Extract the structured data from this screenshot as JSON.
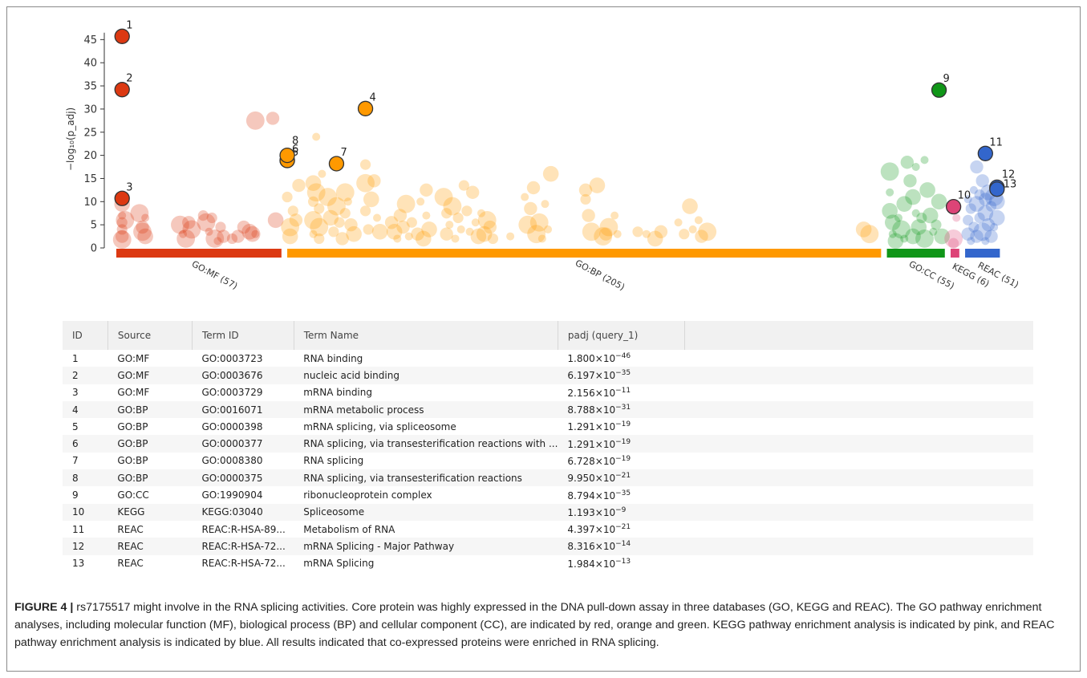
{
  "chart_data": {
    "type": "scatter",
    "ylabel": "−log₁₀(p_adj)",
    "yticks": [
      0,
      5,
      10,
      15,
      20,
      25,
      30,
      35,
      40,
      45
    ],
    "ylim": [
      0,
      47
    ],
    "sources": [
      {
        "label": "GO:MF (57)",
        "color": "#dc3912",
        "range": [
          0,
          57
        ]
      },
      {
        "label": "GO:BP (205)",
        "color": "#ff9900",
        "range": [
          59,
          264
        ]
      },
      {
        "label": "GO:CC (55)",
        "color": "#109618",
        "range": [
          266,
          286
        ]
      },
      {
        "label": "KEGG (6)",
        "color": "#dd4477",
        "range": [
          288,
          291
        ]
      },
      {
        "label": "REAC (51)",
        "color": "#3366cc",
        "range": [
          293,
          305
        ]
      }
    ],
    "highlighted": [
      {
        "id": "1",
        "source": 0,
        "x": 2,
        "y": 45.7
      },
      {
        "id": "2",
        "source": 0,
        "x": 2,
        "y": 34.2
      },
      {
        "id": "3",
        "source": 0,
        "x": 2,
        "y": 10.7
      },
      {
        "id": "4",
        "source": 1,
        "x": 86,
        "y": 30.1
      },
      {
        "id": "5",
        "source": 1,
        "x": 59,
        "y": 18.9
      },
      {
        "id": "6",
        "source": 1,
        "x": 59,
        "y": 18.9
      },
      {
        "id": "7",
        "source": 1,
        "x": 76,
        "y": 18.2
      },
      {
        "id": "8",
        "source": 1,
        "x": 59,
        "y": 20.0
      },
      {
        "id": "9",
        "source": 2,
        "x": 284,
        "y": 34.1
      },
      {
        "id": "10",
        "source": 3,
        "x": 289,
        "y": 8.9
      },
      {
        "id": "11",
        "source": 4,
        "x": 300,
        "y": 20.4
      },
      {
        "id": "12",
        "source": 4,
        "x": 304,
        "y": 13.1
      },
      {
        "id": "13",
        "source": 4,
        "x": 304,
        "y": 12.7
      }
    ],
    "background_points": [
      {
        "source": 0,
        "x": 2,
        "y": 9.5
      },
      {
        "source": 0,
        "x": 2,
        "y": 7.0
      },
      {
        "source": 0,
        "x": 2,
        "y": 5.5
      },
      {
        "source": 0,
        "x": 2,
        "y": 4.0
      },
      {
        "source": 0,
        "x": 2,
        "y": 2.5
      },
      {
        "source": 0,
        "x": 2,
        "y": 1.8
      },
      {
        "source": 0,
        "x": 3,
        "y": 6.0
      },
      {
        "source": 0,
        "x": 8,
        "y": 7.5
      },
      {
        "source": 0,
        "x": 9,
        "y": 3.5
      },
      {
        "source": 0,
        "x": 10,
        "y": 6.5
      },
      {
        "source": 0,
        "x": 10,
        "y": 2.5
      },
      {
        "source": 0,
        "x": 9,
        "y": 4.5
      },
      {
        "source": 0,
        "x": 22,
        "y": 5.0
      },
      {
        "source": 0,
        "x": 23,
        "y": 3.0
      },
      {
        "source": 0,
        "x": 24,
        "y": 2.0
      },
      {
        "source": 0,
        "x": 25,
        "y": 5.5
      },
      {
        "source": 0,
        "x": 26,
        "y": 4.0
      },
      {
        "source": 0,
        "x": 30,
        "y": 7.0
      },
      {
        "source": 0,
        "x": 31,
        "y": 5.5
      },
      {
        "source": 0,
        "x": 32,
        "y": 3.5
      },
      {
        "source": 0,
        "x": 33,
        "y": 6.5
      },
      {
        "source": 0,
        "x": 34,
        "y": 2.0
      },
      {
        "source": 0,
        "x": 35,
        "y": 1.5
      },
      {
        "source": 0,
        "x": 36,
        "y": 4.5
      },
      {
        "source": 0,
        "x": 37,
        "y": 2.5
      },
      {
        "source": 0,
        "x": 40,
        "y": 2.0
      },
      {
        "source": 0,
        "x": 42,
        "y": 2.5
      },
      {
        "source": 0,
        "x": 44,
        "y": 4.5
      },
      {
        "source": 0,
        "x": 46,
        "y": 3.5
      },
      {
        "source": 0,
        "x": 47,
        "y": 3.0
      },
      {
        "source": 0,
        "x": 48,
        "y": 3.0
      },
      {
        "source": 0,
        "x": 48,
        "y": 27.5
      },
      {
        "source": 0,
        "x": 54,
        "y": 28.0
      },
      {
        "source": 0,
        "x": 55,
        "y": 6.0
      },
      {
        "source": 1,
        "x": 59,
        "y": 11.0
      },
      {
        "source": 1,
        "x": 60,
        "y": 2.5
      },
      {
        "source": 1,
        "x": 60,
        "y": 4.5
      },
      {
        "source": 1,
        "x": 61,
        "y": 8.0
      },
      {
        "source": 1,
        "x": 62,
        "y": 6.0
      },
      {
        "source": 1,
        "x": 63,
        "y": 13.5
      },
      {
        "source": 1,
        "x": 69,
        "y": 24.0
      },
      {
        "source": 1,
        "x": 68,
        "y": 14.0
      },
      {
        "source": 1,
        "x": 68,
        "y": 10.0
      },
      {
        "source": 1,
        "x": 68,
        "y": 6.0
      },
      {
        "source": 1,
        "x": 68,
        "y": 3.0
      },
      {
        "source": 1,
        "x": 69,
        "y": 12.0
      },
      {
        "source": 1,
        "x": 70,
        "y": 8.5
      },
      {
        "source": 1,
        "x": 70,
        "y": 4.5
      },
      {
        "source": 1,
        "x": 70,
        "y": 2.0
      },
      {
        "source": 1,
        "x": 71,
        "y": 16.0
      },
      {
        "source": 1,
        "x": 73,
        "y": 11.0
      },
      {
        "source": 1,
        "x": 74,
        "y": 6.5
      },
      {
        "source": 1,
        "x": 75,
        "y": 3.5
      },
      {
        "source": 1,
        "x": 76,
        "y": 9.0
      },
      {
        "source": 1,
        "x": 77,
        "y": 5.5
      },
      {
        "source": 1,
        "x": 78,
        "y": 2.0
      },
      {
        "source": 1,
        "x": 79,
        "y": 12.0
      },
      {
        "source": 1,
        "x": 79,
        "y": 7.5
      },
      {
        "source": 1,
        "x": 80,
        "y": 10.0
      },
      {
        "source": 1,
        "x": 81,
        "y": 5.0
      },
      {
        "source": 1,
        "x": 82,
        "y": 3.0
      },
      {
        "source": 1,
        "x": 86,
        "y": 18.0
      },
      {
        "source": 1,
        "x": 86,
        "y": 14.0
      },
      {
        "source": 1,
        "x": 86,
        "y": 8.0
      },
      {
        "source": 1,
        "x": 87,
        "y": 4.0
      },
      {
        "source": 1,
        "x": 88,
        "y": 10.5
      },
      {
        "source": 1,
        "x": 89,
        "y": 14.5
      },
      {
        "source": 1,
        "x": 90,
        "y": 6.5
      },
      {
        "source": 1,
        "x": 91,
        "y": 3.5
      },
      {
        "source": 1,
        "x": 95,
        "y": 5.5
      },
      {
        "source": 1,
        "x": 96,
        "y": 3.5
      },
      {
        "source": 1,
        "x": 97,
        "y": 2.0
      },
      {
        "source": 1,
        "x": 98,
        "y": 7.0
      },
      {
        "source": 1,
        "x": 99,
        "y": 4.5
      },
      {
        "source": 1,
        "x": 100,
        "y": 9.5
      },
      {
        "source": 1,
        "x": 101,
        "y": 2.5
      },
      {
        "source": 1,
        "x": 102,
        "y": 5.5
      },
      {
        "source": 1,
        "x": 104,
        "y": 3.0
      },
      {
        "source": 1,
        "x": 105,
        "y": 10.0
      },
      {
        "source": 1,
        "x": 106,
        "y": 2.0
      },
      {
        "source": 1,
        "x": 107,
        "y": 12.5
      },
      {
        "source": 1,
        "x": 107,
        "y": 7.0
      },
      {
        "source": 1,
        "x": 108,
        "y": 4.0
      },
      {
        "source": 1,
        "x": 113,
        "y": 11.0
      },
      {
        "source": 1,
        "x": 114,
        "y": 7.5
      },
      {
        "source": 1,
        "x": 114,
        "y": 3.0
      },
      {
        "source": 1,
        "x": 115,
        "y": 5.0
      },
      {
        "source": 1,
        "x": 116,
        "y": 9.0
      },
      {
        "source": 1,
        "x": 117,
        "y": 2.0
      },
      {
        "source": 1,
        "x": 118,
        "y": 6.5
      },
      {
        "source": 1,
        "x": 119,
        "y": 4.0
      },
      {
        "source": 1,
        "x": 120,
        "y": 13.5
      },
      {
        "source": 1,
        "x": 121,
        "y": 8.0
      },
      {
        "source": 1,
        "x": 122,
        "y": 3.5
      },
      {
        "source": 1,
        "x": 123,
        "y": 12.0
      },
      {
        "source": 1,
        "x": 124,
        "y": 5.5
      },
      {
        "source": 1,
        "x": 125,
        "y": 2.5
      },
      {
        "source": 1,
        "x": 126,
        "y": 7.5
      },
      {
        "source": 1,
        "x": 127,
        "y": 3.0
      },
      {
        "source": 1,
        "x": 128,
        "y": 6.0
      },
      {
        "source": 1,
        "x": 129,
        "y": 4.5
      },
      {
        "source": 1,
        "x": 130,
        "y": 2.0
      },
      {
        "source": 1,
        "x": 136,
        "y": 2.5
      },
      {
        "source": 1,
        "x": 141,
        "y": 11.0
      },
      {
        "source": 1,
        "x": 142,
        "y": 5.0
      },
      {
        "source": 1,
        "x": 143,
        "y": 8.5
      },
      {
        "source": 1,
        "x": 144,
        "y": 13.0
      },
      {
        "source": 1,
        "x": 145,
        "y": 3.0
      },
      {
        "source": 1,
        "x": 146,
        "y": 5.5
      },
      {
        "source": 1,
        "x": 147,
        "y": 2.0
      },
      {
        "source": 1,
        "x": 148,
        "y": 9.5
      },
      {
        "source": 1,
        "x": 149,
        "y": 4.0
      },
      {
        "source": 1,
        "x": 150,
        "y": 16.0
      },
      {
        "source": 1,
        "x": 162,
        "y": 12.5
      },
      {
        "source": 1,
        "x": 162,
        "y": 10.5
      },
      {
        "source": 1,
        "x": 163,
        "y": 7.0
      },
      {
        "source": 1,
        "x": 164,
        "y": 3.5
      },
      {
        "source": 1,
        "x": 166,
        "y": 13.5
      },
      {
        "source": 1,
        "x": 168,
        "y": 2.5
      },
      {
        "source": 1,
        "x": 169,
        "y": 3.0
      },
      {
        "source": 1,
        "x": 170,
        "y": 4.5
      },
      {
        "source": 1,
        "x": 172,
        "y": 7.0
      },
      {
        "source": 1,
        "x": 173,
        "y": 3.0
      },
      {
        "source": 1,
        "x": 180,
        "y": 3.5
      },
      {
        "source": 1,
        "x": 183,
        "y": 3.0
      },
      {
        "source": 1,
        "x": 186,
        "y": 2.0
      },
      {
        "source": 1,
        "x": 188,
        "y": 3.5
      },
      {
        "source": 1,
        "x": 194,
        "y": 5.5
      },
      {
        "source": 1,
        "x": 196,
        "y": 3.0
      },
      {
        "source": 1,
        "x": 198,
        "y": 9.0
      },
      {
        "source": 1,
        "x": 199,
        "y": 4.0
      },
      {
        "source": 1,
        "x": 201,
        "y": 6.0
      },
      {
        "source": 1,
        "x": 202,
        "y": 2.5
      },
      {
        "source": 1,
        "x": 204,
        "y": 3.5
      },
      {
        "source": 1,
        "x": 258,
        "y": 4.0
      },
      {
        "source": 1,
        "x": 260,
        "y": 3.0
      },
      {
        "source": 2,
        "x": 267,
        "y": 16.5
      },
      {
        "source": 2,
        "x": 267,
        "y": 12.0
      },
      {
        "source": 2,
        "x": 267,
        "y": 8.0
      },
      {
        "source": 2,
        "x": 268,
        "y": 5.5
      },
      {
        "source": 2,
        "x": 268,
        "y": 3.0
      },
      {
        "source": 2,
        "x": 269,
        "y": 1.5
      },
      {
        "source": 2,
        "x": 270,
        "y": 6.5
      },
      {
        "source": 2,
        "x": 271,
        "y": 4.0
      },
      {
        "source": 2,
        "x": 272,
        "y": 9.5
      },
      {
        "source": 2,
        "x": 272,
        "y": 2.0
      },
      {
        "source": 2,
        "x": 273,
        "y": 18.5
      },
      {
        "source": 2,
        "x": 274,
        "y": 14.5
      },
      {
        "source": 2,
        "x": 275,
        "y": 11.0
      },
      {
        "source": 2,
        "x": 275,
        "y": 2.5
      },
      {
        "source": 2,
        "x": 276,
        "y": 17.5
      },
      {
        "source": 2,
        "x": 276,
        "y": 7.5
      },
      {
        "source": 2,
        "x": 277,
        "y": 4.5
      },
      {
        "source": 2,
        "x": 278,
        "y": 6.5
      },
      {
        "source": 2,
        "x": 279,
        "y": 19.0
      },
      {
        "source": 2,
        "x": 279,
        "y": 2.0
      },
      {
        "source": 2,
        "x": 280,
        "y": 12.5
      },
      {
        "source": 2,
        "x": 281,
        "y": 7.0
      },
      {
        "source": 2,
        "x": 282,
        "y": 3.5
      },
      {
        "source": 2,
        "x": 283,
        "y": 5.0
      },
      {
        "source": 2,
        "x": 284,
        "y": 10.0
      },
      {
        "source": 2,
        "x": 285,
        "y": 2.5
      },
      {
        "source": 3,
        "x": 290,
        "y": 6.5
      },
      {
        "source": 3,
        "x": 289,
        "y": 2.0
      },
      {
        "source": 3,
        "x": 289,
        "y": 1.0
      },
      {
        "source": 4,
        "x": 294,
        "y": 10.5
      },
      {
        "source": 4,
        "x": 294,
        "y": 6.0
      },
      {
        "source": 4,
        "x": 294,
        "y": 3.0
      },
      {
        "source": 4,
        "x": 295,
        "y": 8.5
      },
      {
        "source": 4,
        "x": 295,
        "y": 1.5
      },
      {
        "source": 4,
        "x": 296,
        "y": 12.5
      },
      {
        "source": 4,
        "x": 296,
        "y": 4.5
      },
      {
        "source": 4,
        "x": 297,
        "y": 17.5
      },
      {
        "source": 4,
        "x": 297,
        "y": 9.5
      },
      {
        "source": 4,
        "x": 297,
        "y": 2.5
      },
      {
        "source": 4,
        "x": 298,
        "y": 11.5
      },
      {
        "source": 4,
        "x": 298,
        "y": 6.5
      },
      {
        "source": 4,
        "x": 299,
        "y": 14.5
      },
      {
        "source": 4,
        "x": 299,
        "y": 3.5
      },
      {
        "source": 4,
        "x": 300,
        "y": 10.5
      },
      {
        "source": 4,
        "x": 300,
        "y": 7.5
      },
      {
        "source": 4,
        "x": 300,
        "y": 1.5
      },
      {
        "source": 4,
        "x": 301,
        "y": 12.0
      },
      {
        "source": 4,
        "x": 301,
        "y": 5.0
      },
      {
        "source": 4,
        "x": 302,
        "y": 9.0
      },
      {
        "source": 4,
        "x": 302,
        "y": 2.5
      },
      {
        "source": 4,
        "x": 303,
        "y": 11.0
      },
      {
        "source": 4,
        "x": 303,
        "y": 4.5
      },
      {
        "source": 4,
        "x": 304,
        "y": 10.0
      },
      {
        "source": 4,
        "x": 304,
        "y": 6.5
      }
    ]
  },
  "table": {
    "headers": [
      "ID",
      "Source",
      "Term ID",
      "Term Name",
      "padj (query_1)"
    ],
    "rows": [
      {
        "id": "1",
        "source": "GO:MF",
        "term_id": "GO:0003723",
        "term_name": "RNA binding",
        "p_mant": "1.800×10",
        "p_exp": "−46"
      },
      {
        "id": "2",
        "source": "GO:MF",
        "term_id": "GO:0003676",
        "term_name": "nucleic acid binding",
        "p_mant": "6.197×10",
        "p_exp": "−35"
      },
      {
        "id": "3",
        "source": "GO:MF",
        "term_id": "GO:0003729",
        "term_name": "mRNA binding",
        "p_mant": "2.156×10",
        "p_exp": "−11"
      },
      {
        "id": "4",
        "source": "GO:BP",
        "term_id": "GO:0016071",
        "term_name": "mRNA metabolic process",
        "p_mant": "8.788×10",
        "p_exp": "−31"
      },
      {
        "id": "5",
        "source": "GO:BP",
        "term_id": "GO:0000398",
        "term_name": "mRNA splicing, via spliceosome",
        "p_mant": "1.291×10",
        "p_exp": "−19"
      },
      {
        "id": "6",
        "source": "GO:BP",
        "term_id": "GO:0000377",
        "term_name": "RNA splicing, via transesterification reactions with ...",
        "p_mant": "1.291×10",
        "p_exp": "−19"
      },
      {
        "id": "7",
        "source": "GO:BP",
        "term_id": "GO:0008380",
        "term_name": "RNA splicing",
        "p_mant": "6.728×10",
        "p_exp": "−19"
      },
      {
        "id": "8",
        "source": "GO:BP",
        "term_id": "GO:0000375",
        "term_name": "RNA splicing, via transesterification reactions",
        "p_mant": "9.950×10",
        "p_exp": "−21"
      },
      {
        "id": "9",
        "source": "GO:CC",
        "term_id": "GO:1990904",
        "term_name": "ribonucleoprotein complex",
        "p_mant": "8.794×10",
        "p_exp": "−35"
      },
      {
        "id": "10",
        "source": "KEGG",
        "term_id": "KEGG:03040",
        "term_name": "Spliceosome",
        "p_mant": "1.193×10",
        "p_exp": "−9"
      },
      {
        "id": "11",
        "source": "REAC",
        "term_id": "REAC:R-HSA-89...",
        "term_name": "Metabolism of RNA",
        "p_mant": "4.397×10",
        "p_exp": "−21"
      },
      {
        "id": "12",
        "source": "REAC",
        "term_id": "REAC:R-HSA-72...",
        "term_name": "mRNA Splicing - Major Pathway",
        "p_mant": "8.316×10",
        "p_exp": "−14"
      },
      {
        "id": "13",
        "source": "REAC",
        "term_id": "REAC:R-HSA-72...",
        "term_name": "mRNA Splicing",
        "p_mant": "1.984×10",
        "p_exp": "−13"
      }
    ]
  },
  "caption": {
    "lead": "FIGURE 4 |",
    "text": " rs7175517 might involve in the RNA splicing activities. Core protein was highly expressed in the DNA pull-down assay in three databases (GO, KEGG and REAC). The GO pathway enrichment analyses, including molecular function (MF), biological process (BP) and cellular component (CC), are indicated by red, orange and green. KEGG pathway enrichment analysis is indicated by pink, and REAC pathway enrichment analysis is indicated by blue. All results indicated that co-expressed proteins were enriched in RNA splicing."
  }
}
